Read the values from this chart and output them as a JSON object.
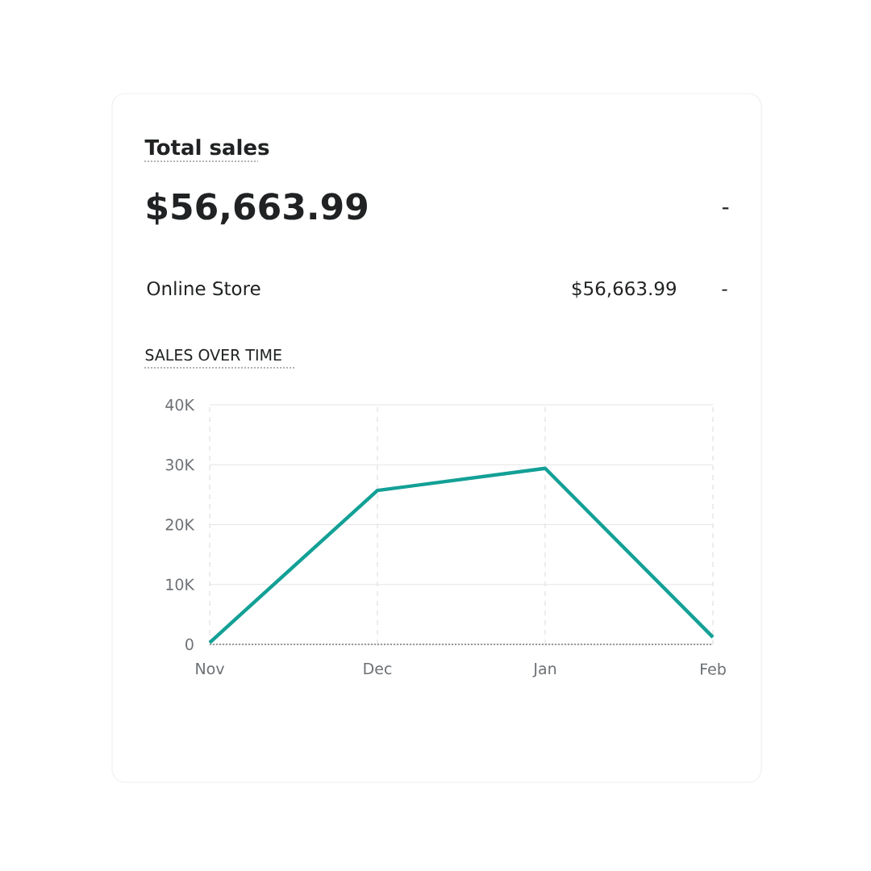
{
  "chart_data": {
    "type": "line",
    "title": "Total sales",
    "annotations": [
      "$56,663.99",
      "-",
      "Online Store",
      "$56,663.99",
      "-",
      "SALES OVER TIME"
    ],
    "categories": [
      "Nov",
      "Dec",
      "Jan",
      "Feb"
    ],
    "series": [
      {
        "color": "#13a096",
        "values": [
          300,
          25700,
          29400,
          1200
        ]
      }
    ],
    "ylim": [
      0,
      40000
    ],
    "yticks": [
      {
        "value": 0,
        "label": "0"
      },
      {
        "value": 10000,
        "label": "10K"
      },
      {
        "value": 20000,
        "label": "20K"
      },
      {
        "value": 30000,
        "label": "30K"
      },
      {
        "value": 40000,
        "label": "40K"
      }
    ],
    "grid": true,
    "marker": "none",
    "line_style": "solid"
  }
}
